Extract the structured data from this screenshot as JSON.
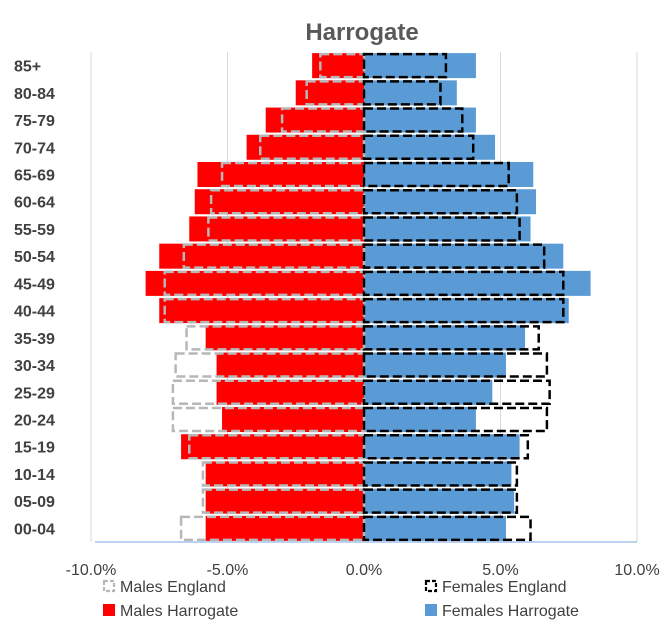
{
  "chart_data": {
    "type": "bar",
    "orientation": "horizontal",
    "title": "Harrogate",
    "categories": [
      "85+",
      "80-84",
      "75-79",
      "70-74",
      "65-69",
      "60-64",
      "55-59",
      "50-54",
      "45-49",
      "40-44",
      "35-39",
      "30-34",
      "25-29",
      "20-24",
      "15-19",
      "10-14",
      "05-09",
      "00-04"
    ],
    "xlim": [
      -10,
      10
    ],
    "x_ticks": [
      "-10.0%",
      "-5.0%",
      "0.0%",
      "5.0%",
      "10.0%"
    ],
    "grid": true,
    "legend_position": "bottom",
    "series": [
      {
        "name": "Males England",
        "style": "dashed-outline",
        "color": "#b7b7b7",
        "values": [
          -1.6,
          -2.1,
          -3.0,
          -3.8,
          -5.2,
          -5.6,
          -5.7,
          -6.6,
          -7.3,
          -7.3,
          -6.5,
          -6.9,
          -7.0,
          -7.0,
          -6.4,
          -5.9,
          -5.9,
          -6.7
        ]
      },
      {
        "name": "Females England",
        "style": "dashed-outline",
        "color": "#000000",
        "values": [
          3.0,
          2.8,
          3.6,
          4.0,
          5.3,
          5.6,
          5.7,
          6.6,
          7.3,
          7.3,
          6.4,
          6.7,
          6.8,
          6.7,
          6.0,
          5.6,
          5.6,
          6.1
        ]
      },
      {
        "name": "Males Harrogate",
        "style": "filled",
        "color": "#ff0000",
        "values": [
          -1.9,
          -2.5,
          -3.6,
          -4.3,
          -6.1,
          -6.2,
          -6.4,
          -7.5,
          -8.0,
          -7.5,
          -5.8,
          -5.4,
          -5.4,
          -5.2,
          -6.7,
          -5.8,
          -5.8,
          -5.8
        ]
      },
      {
        "name": "Females Harrogate",
        "style": "filled",
        "color": "#5b9bd5",
        "values": [
          4.1,
          3.4,
          4.1,
          4.8,
          6.2,
          6.3,
          6.1,
          7.3,
          8.3,
          7.5,
          5.9,
          5.2,
          4.7,
          4.1,
          5.7,
          5.4,
          5.5,
          5.2
        ]
      }
    ]
  }
}
